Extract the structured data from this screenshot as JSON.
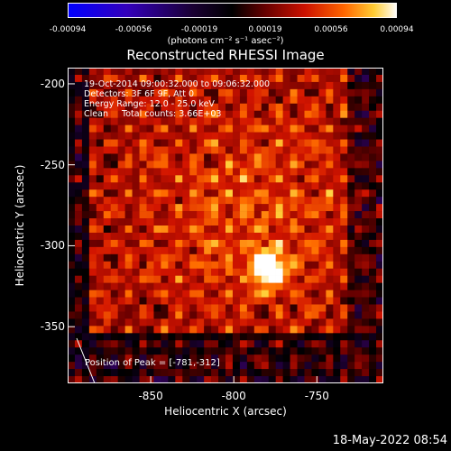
{
  "chart_data": {
    "type": "heatmap",
    "title": "Reconstructed RHESSI Image",
    "xlabel": "Heliocentric X (arcsec)",
    "ylabel": "Heliocentric Y (arcsec)",
    "xlim": [
      -900,
      -710
    ],
    "ylim": [
      -385,
      -190
    ],
    "xticks": [
      "-850",
      "-800",
      "-750"
    ],
    "yticks": [
      "-200",
      "-250",
      "-300",
      "-350"
    ],
    "colorbar": {
      "ticks": [
        "-0.00094",
        "-0.00056",
        "-0.00019",
        "0.00019",
        "0.00056",
        "0.00094"
      ],
      "range": [
        -0.00094,
        0.00094
      ],
      "unit_text": "(photons cm⁻² s⁻¹ asec⁻²)",
      "colors": [
        "#0000ff",
        "#3300aa",
        "#220044",
        "#000000",
        "#550000",
        "#aa0000",
        "#ff3300",
        "#ff9900",
        "#ffff66",
        "#ffffff"
      ]
    },
    "info_lines": [
      "19-Oct-2014 09:00:32.000 to 09:06:32.000",
      "Detectors: 3F 6F 9F, Att 0",
      "Energy Range: 12.0 - 25.0 keV",
      "Clean     Total counts: 3.66E+03"
    ],
    "peak_label": "Position of Peak = [-781,-312]",
    "peak": {
      "x": -781,
      "y": -312
    }
  },
  "footer_date": "18-May-2022 08:54"
}
